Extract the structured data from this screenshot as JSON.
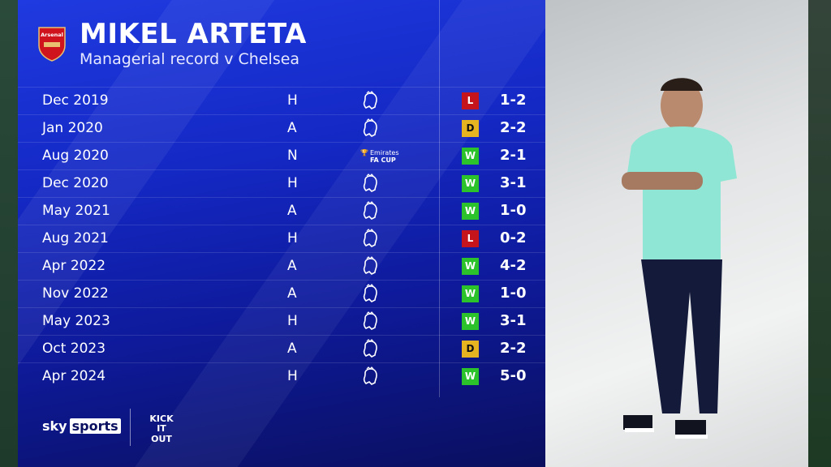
{
  "header": {
    "title": "MIKEL ARTETA",
    "subtitle": "Managerial record v Chelsea",
    "crest_text": "Arsenal"
  },
  "colors": {
    "L": "#c6141d",
    "D": "#e6b420",
    "W": "#2cc22c"
  },
  "matches": [
    {
      "date": "Dec 2019",
      "venue": "H",
      "competition": "premier-league-icon",
      "result": "L",
      "score": "1-2"
    },
    {
      "date": "Jan 2020",
      "venue": "A",
      "competition": "premier-league-icon",
      "result": "D",
      "score": "2-2"
    },
    {
      "date": "Aug 2020",
      "venue": "N",
      "competition": "fa-cup-icon",
      "comp_text": [
        "Emirates",
        "FA CUP"
      ],
      "result": "W",
      "score": "2-1"
    },
    {
      "date": "Dec 2020",
      "venue": "H",
      "competition": "premier-league-icon",
      "result": "W",
      "score": "3-1"
    },
    {
      "date": "May 2021",
      "venue": "A",
      "competition": "premier-league-icon",
      "result": "W",
      "score": "1-0"
    },
    {
      "date": "Aug 2021",
      "venue": "H",
      "competition": "premier-league-icon",
      "result": "L",
      "score": "0-2"
    },
    {
      "date": "Apr 2022",
      "venue": "A",
      "competition": "premier-league-icon",
      "result": "W",
      "score": "4-2"
    },
    {
      "date": "Nov 2022",
      "venue": "A",
      "competition": "premier-league-icon",
      "result": "W",
      "score": "1-0"
    },
    {
      "date": "May 2023",
      "venue": "H",
      "competition": "premier-league-icon",
      "result": "W",
      "score": "3-1"
    },
    {
      "date": "Oct 2023",
      "venue": "A",
      "competition": "premier-league-icon",
      "result": "D",
      "score": "2-2"
    },
    {
      "date": "Apr 2024",
      "venue": "H",
      "competition": "premier-league-icon",
      "result": "W",
      "score": "5-0"
    }
  ],
  "footer": {
    "sky": "sky",
    "sports": "sports",
    "kick_it_out": "KICK IT OUT"
  }
}
